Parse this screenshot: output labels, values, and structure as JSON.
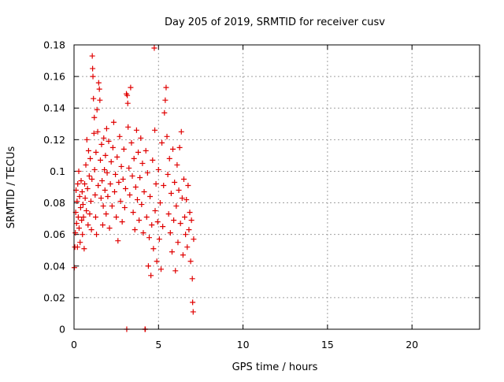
{
  "chart_data": {
    "type": "scatter",
    "title": "Day 205 of 2019, SRMTID for receiver cusv",
    "xlabel": "GPS time / hours",
    "ylabel": "SRMTID / TECUs",
    "xlim": [
      0,
      24
    ],
    "ylim": [
      0,
      0.18
    ],
    "xticks": [
      0,
      5,
      10,
      15,
      20
    ],
    "xtick_labels": [
      "0",
      "5",
      "10",
      "15",
      "20"
    ],
    "yticks": [
      0,
      0.02,
      0.04,
      0.06,
      0.08,
      0.1,
      0.12,
      0.14,
      0.16,
      0.18
    ],
    "ytick_labels": [
      "0",
      "0.02",
      "0.04",
      "0.06",
      "0.08",
      "0.1",
      "0.12",
      "0.14",
      "0.16",
      "0.18"
    ],
    "grid": true,
    "marker": "+",
    "series": [
      {
        "name": "SRMTID",
        "color": "#e00000",
        "points": [
          [
            0.02,
            0.039
          ],
          [
            0.05,
            0.052
          ],
          [
            0.08,
            0.061
          ],
          [
            0.1,
            0.074
          ],
          [
            0.12,
            0.088
          ],
          [
            0.15,
            0.067
          ],
          [
            0.18,
            0.081
          ],
          [
            0.2,
            0.052
          ],
          [
            0.22,
            0.092
          ],
          [
            0.25,
            0.071
          ],
          [
            0.28,
            0.1
          ],
          [
            0.3,
            0.064
          ],
          [
            0.33,
            0.084
          ],
          [
            0.36,
            0.055
          ],
          [
            0.39,
            0.077
          ],
          [
            0.42,
            0.094
          ],
          [
            0.45,
            0.069
          ],
          [
            0.48,
            0.087
          ],
          [
            0.5,
            0.06
          ],
          [
            0.53,
            0.079
          ],
          [
            0.56,
            0.071
          ],
          [
            0.6,
            0.051
          ],
          [
            0.63,
            0.092
          ],
          [
            0.66,
            0.083
          ],
          [
            0.7,
            0.104
          ],
          [
            0.73,
            0.075
          ],
          [
            0.76,
            0.12
          ],
          [
            0.8,
            0.089
          ],
          [
            0.83,
            0.066
          ],
          [
            0.86,
            0.113
          ],
          [
            0.9,
            0.097
          ],
          [
            0.93,
            0.073
          ],
          [
            0.96,
            0.108
          ],
          [
            1.0,
            0.081
          ],
          [
            1.03,
            0.063
          ],
          [
            1.06,
            0.095
          ],
          [
            1.08,
            0.173
          ],
          [
            1.1,
            0.165
          ],
          [
            1.12,
            0.16
          ],
          [
            1.15,
            0.146
          ],
          [
            1.18,
            0.124
          ],
          [
            1.2,
            0.134
          ],
          [
            1.22,
            0.101
          ],
          [
            1.25,
            0.085
          ],
          [
            1.28,
            0.071
          ],
          [
            1.3,
            0.112
          ],
          [
            1.33,
            0.06
          ],
          [
            1.36,
            0.139
          ],
          [
            1.4,
            0.125
          ],
          [
            1.43,
            0.091
          ],
          [
            1.46,
            0.156
          ],
          [
            1.5,
            0.152
          ],
          [
            1.53,
            0.145
          ],
          [
            1.56,
            0.107
          ],
          [
            1.6,
            0.083
          ],
          [
            1.63,
            0.117
          ],
          [
            1.66,
            0.094
          ],
          [
            1.7,
            0.066
          ],
          [
            1.73,
            0.078
          ],
          [
            1.76,
            0.121
          ],
          [
            1.8,
            0.101
          ],
          [
            1.83,
            0.088
          ],
          [
            1.86,
            0.11
          ],
          [
            1.9,
            0.073
          ],
          [
            1.93,
            0.127
          ],
          [
            1.96,
            0.099
          ],
          [
            2.0,
            0.084
          ],
          [
            2.05,
            0.119
          ],
          [
            2.1,
            0.064
          ],
          [
            2.15,
            0.092
          ],
          [
            2.2,
            0.106
          ],
          [
            2.25,
            0.078
          ],
          [
            2.3,
            0.115
          ],
          [
            2.35,
            0.131
          ],
          [
            2.4,
            0.087
          ],
          [
            2.45,
            0.098
          ],
          [
            2.5,
            0.071
          ],
          [
            2.55,
            0.109
          ],
          [
            2.6,
            0.056
          ],
          [
            2.65,
            0.093
          ],
          [
            2.7,
            0.122
          ],
          [
            2.75,
            0.081
          ],
          [
            2.8,
            0.103
          ],
          [
            2.85,
            0.068
          ],
          [
            2.9,
            0.095
          ],
          [
            2.95,
            0.114
          ],
          [
            3.0,
            0.077
          ],
          [
            3.05,
            0.089
          ],
          [
            3.1,
            0.149
          ],
          [
            3.12,
            0.0
          ],
          [
            3.15,
            0.148
          ],
          [
            3.18,
            0.143
          ],
          [
            3.2,
            0.128
          ],
          [
            3.25,
            0.102
          ],
          [
            3.3,
            0.085
          ],
          [
            3.35,
            0.153
          ],
          [
            3.4,
            0.118
          ],
          [
            3.45,
            0.097
          ],
          [
            3.5,
            0.074
          ],
          [
            3.55,
            0.108
          ],
          [
            3.6,
            0.063
          ],
          [
            3.65,
            0.09
          ],
          [
            3.7,
            0.126
          ],
          [
            3.75,
            0.082
          ],
          [
            3.8,
            0.112
          ],
          [
            3.85,
            0.069
          ],
          [
            3.9,
            0.096
          ],
          [
            3.95,
            0.121
          ],
          [
            4.0,
            0.079
          ],
          [
            4.05,
            0.105
          ],
          [
            4.1,
            0.061
          ],
          [
            4.15,
            0.087
          ],
          [
            4.2,
            0.0
          ],
          [
            4.22,
            0.0
          ],
          [
            4.25,
            0.113
          ],
          [
            4.3,
            0.071
          ],
          [
            4.35,
            0.099
          ],
          [
            4.4,
            0.04
          ],
          [
            4.45,
            0.058
          ],
          [
            4.5,
            0.084
          ],
          [
            4.55,
            0.034
          ],
          [
            4.6,
            0.066
          ],
          [
            4.65,
            0.107
          ],
          [
            4.7,
            0.051
          ],
          [
            4.75,
            0.178
          ],
          [
            4.78,
            0.126
          ],
          [
            4.8,
            0.075
          ],
          [
            4.85,
            0.092
          ],
          [
            4.9,
            0.043
          ],
          [
            4.95,
            0.068
          ],
          [
            5.0,
            0.101
          ],
          [
            5.05,
            0.057
          ],
          [
            5.1,
            0.08
          ],
          [
            5.15,
            0.038
          ],
          [
            5.2,
            0.118
          ],
          [
            5.25,
            0.065
          ],
          [
            5.3,
            0.091
          ],
          [
            5.35,
            0.137
          ],
          [
            5.4,
            0.145
          ],
          [
            5.45,
            0.153
          ],
          [
            5.5,
            0.122
          ],
          [
            5.55,
            0.098
          ],
          [
            5.6,
            0.073
          ],
          [
            5.65,
            0.108
          ],
          [
            5.7,
            0.061
          ],
          [
            5.75,
            0.086
          ],
          [
            5.8,
            0.049
          ],
          [
            5.85,
            0.114
          ],
          [
            5.9,
            0.069
          ],
          [
            5.95,
            0.093
          ],
          [
            6.0,
            0.037
          ],
          [
            6.05,
            0.078
          ],
          [
            6.1,
            0.104
          ],
          [
            6.15,
            0.055
          ],
          [
            6.2,
            0.088
          ],
          [
            6.25,
            0.115
          ],
          [
            6.3,
            0.067
          ],
          [
            6.35,
            0.125
          ],
          [
            6.4,
            0.083
          ],
          [
            6.45,
            0.047
          ],
          [
            6.5,
            0.095
          ],
          [
            6.55,
            0.071
          ],
          [
            6.6,
            0.06
          ],
          [
            6.65,
            0.082
          ],
          [
            6.7,
            0.052
          ],
          [
            6.75,
            0.091
          ],
          [
            6.8,
            0.063
          ],
          [
            6.85,
            0.074
          ],
          [
            6.9,
            0.043
          ],
          [
            6.95,
            0.069
          ],
          [
            7.0,
            0.032
          ],
          [
            7.02,
            0.017
          ],
          [
            7.05,
            0.011
          ],
          [
            7.08,
            0.057
          ]
        ]
      }
    ]
  }
}
